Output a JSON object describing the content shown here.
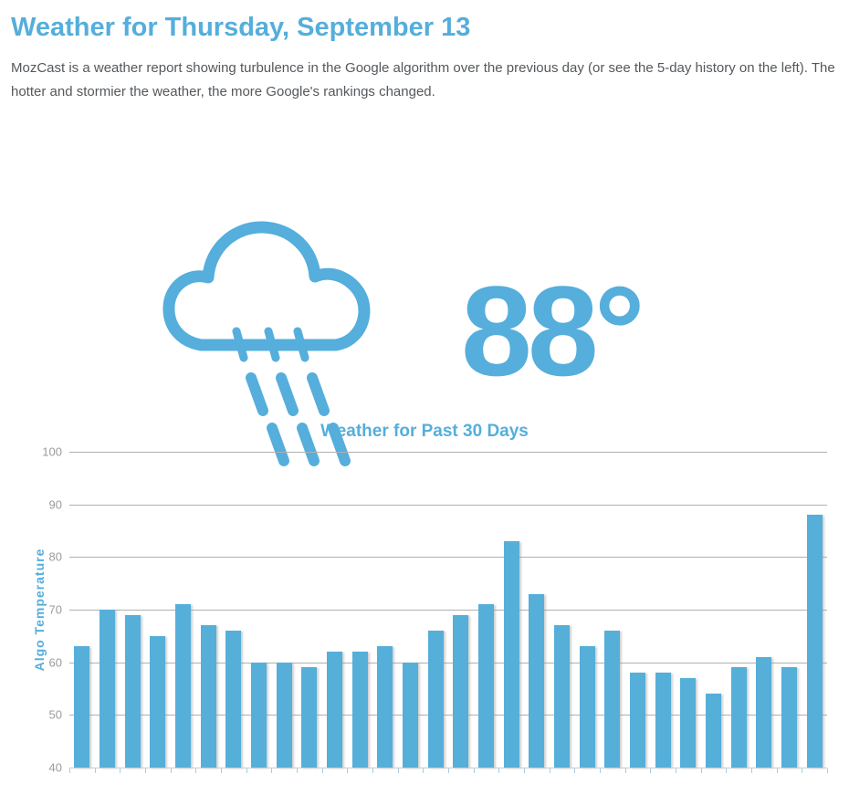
{
  "page": {
    "title": "Weather for Thursday, September 13",
    "description": "MozCast is a weather report showing turbulence in the Google algorithm over the previous day (or see the 5-day history on the left). The hotter and stormier the weather, the more Google's rankings changed.",
    "temperature": "88°",
    "icon": "rain-cloud-icon"
  },
  "colors": {
    "accent_blue": "#55aedb",
    "bar_blue": "#55afd9",
    "gridline_gray": "#b0b0b0",
    "axis_tick_label_gray": "#9b9b9b",
    "x_axis_line": "#c3ced4",
    "x_axis_tick_blue": "#a9cbdf",
    "body_text_gray": "#54585c"
  },
  "chart_data": {
    "type": "bar",
    "title": "Weather for Past 30 Days",
    "xlabel": "",
    "ylabel": "Algo Temperature",
    "ylim": [
      40,
      100
    ],
    "yticks": [
      100,
      90,
      80,
      70,
      60,
      50,
      40
    ],
    "grid": true,
    "legend": false,
    "x_tick_labels_visible": false,
    "values": [
      63,
      70,
      69,
      65,
      71,
      67,
      66,
      60,
      60,
      59,
      62,
      62,
      63,
      60,
      66,
      69,
      71,
      83,
      73,
      67,
      63,
      66,
      58,
      58,
      57,
      54,
      59,
      61,
      59,
      88
    ]
  }
}
